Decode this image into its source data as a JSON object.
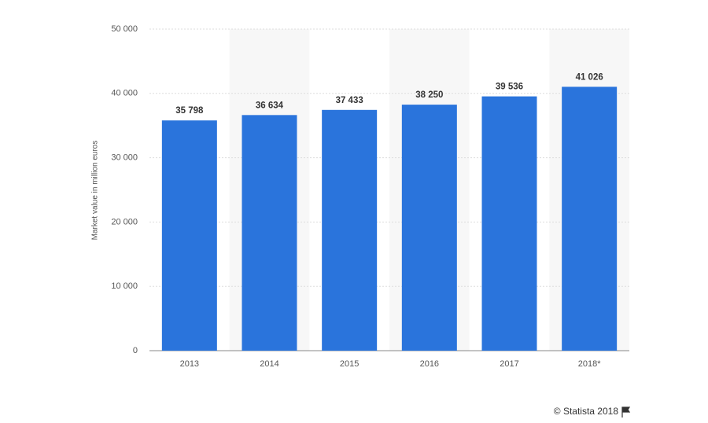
{
  "chart_data": {
    "type": "bar",
    "categories": [
      "2013",
      "2014",
      "2015",
      "2016",
      "2017",
      "2018*"
    ],
    "values": [
      35798,
      36634,
      37433,
      38250,
      39536,
      41026
    ],
    "value_labels": [
      "35 798",
      "36 634",
      "37 433",
      "38 250",
      "39 536",
      "41 026"
    ],
    "color": "#2a74dc",
    "ylabel": "Market value in million euros",
    "ylim": [
      0,
      50000
    ],
    "yticks": [
      0,
      {
        "value": 10000,
        "label": "10 000"
      },
      {
        "value": 20000,
        "label": "20 000"
      },
      {
        "value": 30000,
        "label": "30 000"
      },
      {
        "value": 40000,
        "label": "40 000"
      },
      {
        "value": 50000,
        "label": "50 000"
      }
    ],
    "grid": true,
    "credit": "© Statista 2018"
  }
}
